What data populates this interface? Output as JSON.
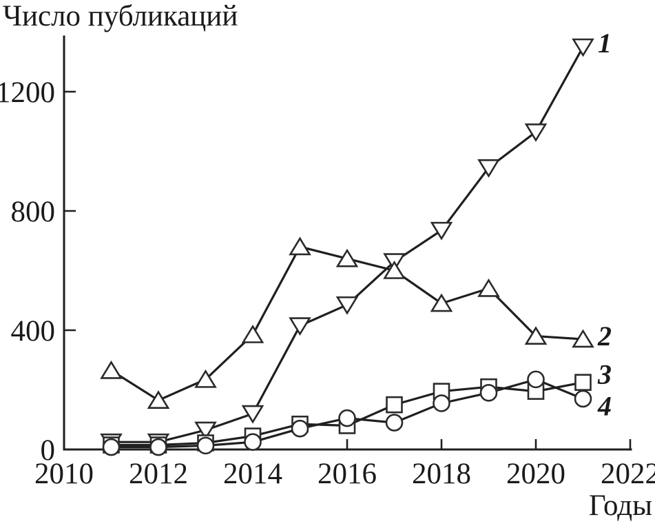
{
  "figure": {
    "title": "Число публикаций",
    "x_axis_label": "Годы"
  },
  "chart_data": {
    "type": "line",
    "title": "Число публикаций",
    "xlabel": "Годы",
    "ylabel": "Число публикаций",
    "x": [
      2011,
      2012,
      2013,
      2014,
      2015,
      2016,
      2017,
      2018,
      2019,
      2020,
      2021
    ],
    "xticks": [
      2010,
      2012,
      2014,
      2016,
      2018,
      2020,
      2022
    ],
    "yticks": [
      0,
      400,
      800,
      1200
    ],
    "xlim": [
      2010,
      2022
    ],
    "ylim": [
      0,
      1385
    ],
    "grid": false,
    "legend_position": "labels-at-line-ends",
    "ink_color": "#1f1f1f",
    "marker_fill": "#ffffff",
    "series": [
      {
        "name": "1",
        "marker": "triangle-down",
        "values": [
          25,
          25,
          65,
          120,
          415,
          485,
          630,
          735,
          945,
          1065,
          1350
        ]
      },
      {
        "name": "2",
        "marker": "triangle-up",
        "values": [
          265,
          165,
          235,
          385,
          680,
          640,
          600,
          490,
          540,
          380,
          370
        ]
      },
      {
        "name": "3",
        "marker": "square",
        "values": [
          15,
          15,
          22,
          45,
          85,
          80,
          150,
          195,
          210,
          195,
          225
        ]
      },
      {
        "name": "4",
        "marker": "circle",
        "values": [
          8,
          8,
          13,
          25,
          70,
          105,
          90,
          155,
          190,
          235,
          170
        ]
      }
    ]
  }
}
